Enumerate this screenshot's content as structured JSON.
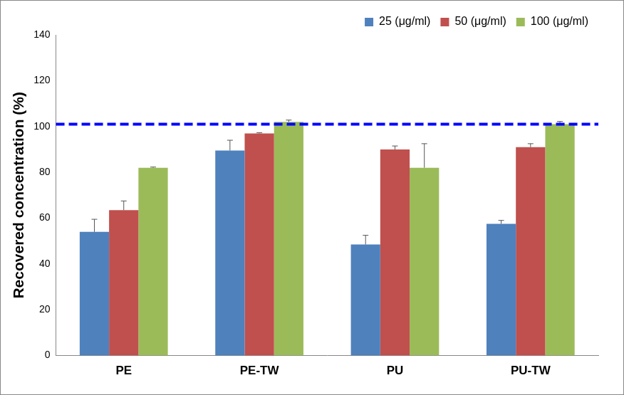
{
  "chart_data": {
    "type": "bar",
    "y_label": "Recovered concentration (%)",
    "categories": [
      "PE",
      "PE-TW",
      "PU",
      "PU-TW"
    ],
    "series": [
      {
        "name": "25 (μg/ml)",
        "color": "#4f81bd",
        "values": [
          54,
          89.5,
          48.5,
          57.5
        ],
        "errors": [
          5.5,
          4.5,
          4,
          1.5
        ]
      },
      {
        "name": "50 (μg/ml)",
        "color": "#c0504d",
        "values": [
          63.5,
          97,
          90,
          91
        ],
        "errors": [
          4,
          0.3,
          1.5,
          1.5
        ]
      },
      {
        "name": "100 (μg/ml)",
        "color": "#9bbb59",
        "values": [
          82,
          102,
          82,
          101
        ],
        "errors": [
          0.3,
          0.8,
          10.5,
          1.2
        ]
      }
    ],
    "reference_lines": [
      {
        "value": 101,
        "color": "#0000ff",
        "line_style": "dashed"
      }
    ],
    "ylim": [
      0,
      140
    ],
    "yticks": [
      0,
      20,
      40,
      60,
      80,
      100,
      120,
      140
    ],
    "grid": false,
    "legend": "upper right"
  }
}
